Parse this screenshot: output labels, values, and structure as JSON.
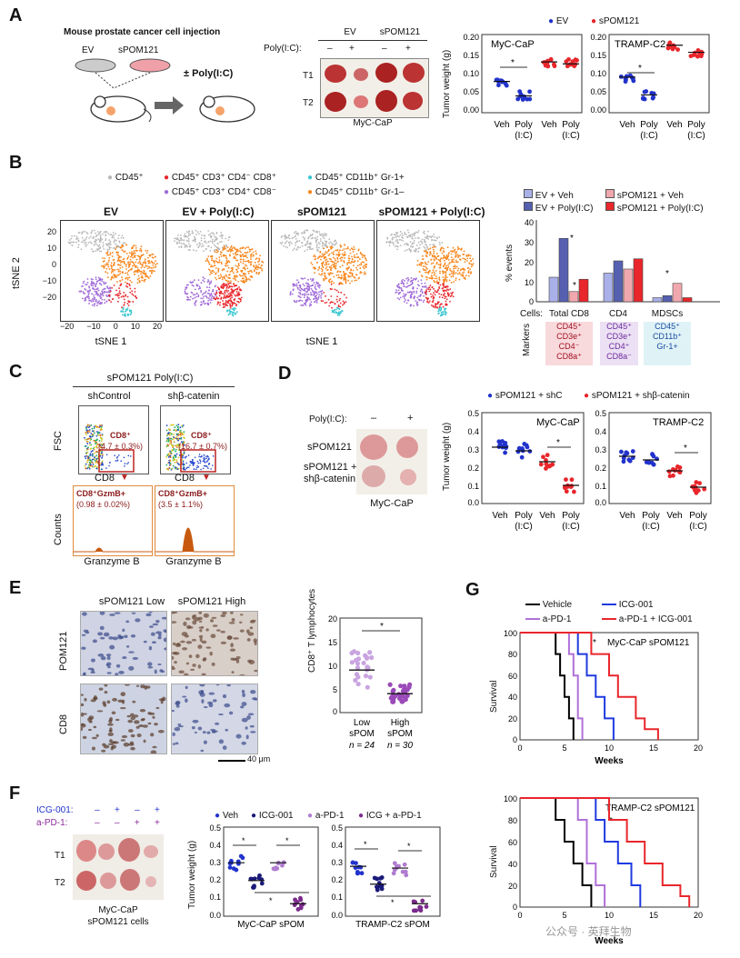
{
  "colors": {
    "ev": "#2233cc",
    "spom": "#e8262b",
    "grey": "#b8b8b8",
    "red": "#e8262b",
    "purple": "#a06ad8",
    "cyan": "#39c6cf",
    "orange": "#f7871f",
    "dark_red": "#8b1a1a",
    "purple_dot": "#b07cd0",
    "violet": "#7b2b8b"
  },
  "panelA": {
    "label": "A",
    "injection_title": "Mouse prostate cancer cell injection",
    "ev": "EV",
    "spom": "sPOM121",
    "polyic": "± Poly(I:C)",
    "table_ev": "EV",
    "table_spom": "sPOM121",
    "polyic_row": "Poly(I:C):",
    "minus": "–",
    "plus": "+",
    "t1": "T1",
    "t2": "T2",
    "caption": "MyC-CaP",
    "legend_ev": "EV",
    "legend_spom": "sPOM121",
    "ylabel": "Tumor weight (g)",
    "chart1_title": "MyC-CaP",
    "chart2_title": "TRAMP-C2",
    "chart1_yticks": [
      "0.20",
      "0.15",
      "0.10",
      "0.05",
      "0.00"
    ],
    "chart2_yticks": [
      "0.20",
      "0.15",
      "0.10",
      "0.05",
      "0.00"
    ],
    "x_veh": "Veh",
    "x_poly": "Poly",
    "x_ic": "(I:C)",
    "star": "*"
  },
  "chart_data": [
    {
      "type": "scatter",
      "panel": "A-left",
      "title": "MyC-CaP",
      "ylabel": "Tumor weight (g)",
      "ylim": [
        0,
        0.2
      ],
      "categories": [
        "EV Veh",
        "EV Poly(I:C)",
        "sPOM121 Veh",
        "sPOM121 Poly(I:C)"
      ],
      "means": [
        0.08,
        0.043,
        0.13,
        0.125
      ]
    },
    {
      "type": "scatter",
      "panel": "A-right",
      "title": "TRAMP-C2",
      "ylabel": "Tumor weight (g)",
      "ylim": [
        0,
        0.2
      ],
      "categories": [
        "EV Veh",
        "EV Poly(I:C)",
        "sPOM121 Veh",
        "sPOM121 Poly(I:C)"
      ],
      "means": [
        0.1,
        0.05,
        0.19,
        0.17
      ]
    },
    {
      "type": "bar",
      "panel": "B-bars",
      "ylabel": "% events",
      "ylim": [
        0,
        40
      ],
      "categories": [
        "Total CD8",
        "CD4",
        "MDSCs"
      ],
      "series": [
        {
          "name": "EV + Veh",
          "values": [
            12,
            14,
            2
          ]
        },
        {
          "name": "EV + Poly(I:C)",
          "values": [
            31,
            20,
            3
          ]
        },
        {
          "name": "sPOM121 + Veh",
          "values": [
            5,
            16,
            9
          ]
        },
        {
          "name": "sPOM121 + Poly(I:C)",
          "values": [
            11,
            21,
            2
          ]
        }
      ]
    },
    {
      "type": "scatter",
      "panel": "D-left",
      "title": "MyC-CaP",
      "ylabel": "Tumor weight (g)",
      "ylim": [
        0,
        0.5
      ],
      "categories": [
        "sPOM121 + shC Veh",
        "sPOM121 + shC Poly(I:C)",
        "sPOM121 + shβ-catenin Veh",
        "sPOM121 + shβ-catenin Poly(I:C)"
      ],
      "means": [
        0.31,
        0.29,
        0.23,
        0.1
      ]
    },
    {
      "type": "scatter",
      "panel": "D-right",
      "title": "TRAMP-C2",
      "ylabel": "Tumor weight (g)",
      "ylim": [
        0,
        0.5
      ],
      "categories": [
        "sPOM121 + shC Veh",
        "sPOM121 + shC Poly(I:C)",
        "sPOM121 + shβ-catenin Veh",
        "sPOM121 + shβ-catenin Poly(I:C)"
      ],
      "means": [
        0.26,
        0.24,
        0.18,
        0.09
      ]
    },
    {
      "type": "scatter",
      "panel": "E-plot",
      "ylabel": "CD8+ T lymphocytes",
      "ylim": [
        0,
        20
      ],
      "categories": [
        "Low sPOM",
        "High sPOM"
      ],
      "means": [
        9,
        4
      ],
      "n": [
        "n = 24",
        "n = 30"
      ]
    },
    {
      "type": "scatter",
      "panel": "F-left",
      "title": "MyC-CaP sPOM",
      "ylabel": "Tumor weight (g)",
      "ylim": [
        0,
        0.5
      ],
      "categories": [
        "Veh",
        "ICG-001",
        "a-PD-1",
        "ICG + a-PD-1"
      ],
      "means": [
        0.3,
        0.2,
        0.3,
        0.07
      ]
    },
    {
      "type": "scatter",
      "panel": "F-right",
      "title": "TRAMP-C2 sPOM",
      "ylabel": "Tumor weight (g)",
      "ylim": [
        0,
        0.5
      ],
      "categories": [
        "Veh",
        "ICG-001",
        "a-PD-1",
        "ICG + a-PD-1"
      ],
      "means": [
        0.28,
        0.18,
        0.27,
        0.07
      ]
    },
    {
      "type": "line",
      "panel": "G-top",
      "title": "MyC-CaP sPOM121",
      "xlabel": "Weeks",
      "ylabel": "Survival",
      "xlim": [
        0,
        20
      ],
      "ylim": [
        0,
        100
      ],
      "series": [
        {
          "name": "Vehicle",
          "x": [
            0,
            3.5,
            4,
            4.5,
            5,
            5.5,
            6
          ],
          "y": [
            100,
            100,
            80,
            60,
            40,
            20,
            0
          ]
        },
        {
          "name": "a-PD-1",
          "x": [
            0,
            5,
            5.5,
            6,
            6.5,
            7
          ],
          "y": [
            100,
            100,
            80,
            60,
            20,
            0
          ]
        },
        {
          "name": "ICG-001",
          "x": [
            0,
            5.5,
            6.5,
            7.5,
            8.5,
            9.5,
            10.5
          ],
          "y": [
            100,
            100,
            80,
            60,
            40,
            20,
            0
          ]
        },
        {
          "name": "a-PD-1 + ICG-001",
          "x": [
            0,
            6.5,
            8,
            10,
            11,
            13,
            14,
            15.5
          ],
          "y": [
            100,
            100,
            80,
            60,
            40,
            20,
            10,
            0
          ]
        }
      ]
    },
    {
      "type": "line",
      "panel": "G-bottom",
      "title": "TRAMP-C2 sPOM121",
      "xlabel": "Weeks",
      "ylabel": "Survival",
      "xlim": [
        0,
        20
      ],
      "ylim": [
        0,
        100
      ],
      "series": [
        {
          "name": "Vehicle",
          "x": [
            0,
            3,
            4,
            5,
            6,
            7,
            8
          ],
          "y": [
            100,
            100,
            80,
            60,
            40,
            20,
            0
          ]
        },
        {
          "name": "a-PD-1",
          "x": [
            0,
            6,
            6.5,
            7.5,
            8.5,
            9.5
          ],
          "y": [
            100,
            100,
            80,
            40,
            20,
            0
          ]
        },
        {
          "name": "ICG-001",
          "x": [
            0,
            7.5,
            8.5,
            9.5,
            11,
            12.5,
            13.5
          ],
          "y": [
            100,
            100,
            80,
            60,
            40,
            20,
            0
          ]
        },
        {
          "name": "a-PD-1 + ICG-001",
          "x": [
            0,
            9,
            10,
            12,
            14,
            16,
            18,
            19
          ],
          "y": [
            100,
            100,
            80,
            60,
            40,
            20,
            10,
            0
          ]
        }
      ]
    }
  ],
  "panelB": {
    "label": "B",
    "legend": [
      "CD45⁺",
      "CD45⁺ CD3⁺ CD4⁻ CD8⁺",
      "CD45⁺ CD11b⁺ Gr-1+",
      "CD45⁺ CD3⁺ CD4⁺ CD8⁻",
      "CD45⁺ CD11b⁺ Gr-1–"
    ],
    "titles": [
      "EV",
      "EV + Poly(I:C)",
      "sPOM121",
      "sPOM121 + Poly(I:C)"
    ],
    "xlabel": "tSNE 1",
    "ylabel": "tSNE 2",
    "yticks": [
      "20",
      "10",
      "0",
      "−10",
      "−20"
    ],
    "xticks": [
      "−20",
      "−10",
      "0",
      "10",
      "20"
    ],
    "bar_legend": [
      "EV + Veh",
      "EV + Poly(I:C)",
      "sPOM121 + Veh",
      "sPOM121 + Poly(I:C)"
    ],
    "bar_ylabel": "% events",
    "bar_yticks": [
      "40",
      "30",
      "20",
      "10",
      "0"
    ],
    "cells_label": "Cells:",
    "markers_label": "Markers",
    "cats": [
      "Total CD8",
      "CD4",
      "MDSCs"
    ],
    "cd8_markers": "CD45⁺\nCD3e⁺\nCD4⁻\nCD8a⁺",
    "cd4_markers": "CD45⁺\nCD3e⁺\nCD4⁺\nCD8a⁻",
    "mdsc_markers": "CD45⁺\nCD11b⁺\nGr-1+",
    "star": "*"
  },
  "panelC": {
    "label": "C",
    "title": "sPOM121 Poly(I:C)",
    "col1": "shControl",
    "col2": "shβ-catenin",
    "fsc": "FSC",
    "cd8": "CD8",
    "counts": "Counts",
    "granzyme": "Granzyme B",
    "gate1_title": "CD8⁺",
    "gate1_val": "(4.7 ± 0.3%)",
    "gate2_title": "CD8⁺",
    "gate2_val": "(16.7 ± 0.7%)",
    "h1_title": "CD8⁺GzmB+",
    "h1_val": "(0.98 ± 0.02%)",
    "h2_title": "CD8⁺GzmB+",
    "h2_val": "(3.5 ± 1.1%)"
  },
  "panelD": {
    "label": "D",
    "polyic": "Poly(I:C):",
    "minus": "–",
    "plus": "+",
    "row1": "sPOM121",
    "row2a": "sPOM121 +",
    "row2b": "shβ-catenin",
    "caption": "MyC-CaP",
    "legend1": "sPOM121 + shC",
    "legend2": "sPOM121 + shβ-catenin",
    "ylabel": "Tumor weight (g)",
    "chart1_title": "MyC-CaP",
    "chart2_title": "TRAMP-C2",
    "yticks": [
      "0.5",
      "0.4",
      "0.3",
      "0.2",
      "0.1",
      "0.0"
    ],
    "x_veh": "Veh",
    "x_poly": "Poly",
    "x_ic": "(I:C)",
    "star": "*"
  },
  "panelE": {
    "label": "E",
    "col1": "sPOM121 Low",
    "col2": "sPOM121 High",
    "row1": "POM121",
    "row2": "CD8",
    "scale": "40 μm",
    "ylabel": "CD8⁺ T lymphocytes",
    "yticks": [
      "20",
      "15",
      "10",
      "5",
      "0"
    ],
    "x1a": "Low",
    "x1b": "sPOM",
    "x2a": "High",
    "x2b": "sPOM",
    "n1": "n = 24",
    "n2": "n = 30",
    "star": "*"
  },
  "panelF": {
    "label": "F",
    "row_icg": "ICG-001:",
    "row_pd1": "a-PD-1:",
    "signs_icg": [
      "–",
      "+",
      "–",
      "+"
    ],
    "signs_pd1": [
      "–",
      "–",
      "+",
      "+"
    ],
    "t1": "T1",
    "t2": "T2",
    "caption1": "MyC-CaP",
    "caption2": "sPOM121 cells",
    "legend": [
      "Veh",
      "ICG-001",
      "a-PD-1",
      "ICG + a-PD-1"
    ],
    "ylabel": "Tumor weight (g)",
    "yticks": [
      "0.5",
      "0.4",
      "0.3",
      "0.2",
      "0.1",
      "0.0"
    ],
    "chart1_xlabel": "MyC-CaP sPOM",
    "chart2_xlabel": "TRAMP-C2 sPOM",
    "star": "*"
  },
  "panelG": {
    "label": "G",
    "legend": [
      "Vehicle",
      "ICG-001",
      "a-PD-1",
      "a-PD-1 + ICG-001"
    ],
    "top_title": "MyC-CaP sPOM121",
    "bottom_title": "TRAMP-C2 sPOM121",
    "ylabel": "Survival",
    "xlabel": "Weeks",
    "yticks": [
      "100",
      "80",
      "60",
      "40",
      "20",
      "0"
    ],
    "xticks": [
      "0",
      "5",
      "10",
      "15",
      "20"
    ],
    "star": "*"
  },
  "watermark": "公众号 · 英拜生物"
}
